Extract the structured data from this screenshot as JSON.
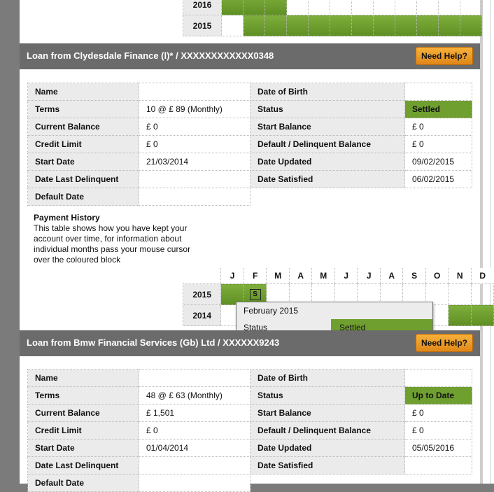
{
  "top_history": {
    "rows": [
      {
        "year": "2016",
        "cells": [
          "g",
          "g",
          "g",
          "",
          "",
          "",
          "",
          "",
          "",
          "",
          "",
          ""
        ]
      },
      {
        "year": "2015",
        "cells": [
          "",
          "g",
          "g",
          "g",
          "g",
          "g",
          "g",
          "g",
          "g",
          "g",
          "g",
          "g"
        ]
      }
    ]
  },
  "loan1": {
    "title": "Loan from Clydesdale Finance (l)* / XXXXXXXXXXXX0348",
    "help_label": "Need Help?",
    "rows": [
      {
        "l": "Name",
        "v": "",
        "l2": "Date of Birth",
        "v2": ""
      },
      {
        "l": "Terms",
        "v": "10  @  £ 89 (Monthly)",
        "l2": "Status",
        "v2": "Settled"
      },
      {
        "l": "Current Balance",
        "v": "£ 0",
        "l2": "Start Balance",
        "v2": "£ 0"
      },
      {
        "l": "Credit Limit",
        "v": "£ 0",
        "l2": "Default / Delinquent Balance",
        "v2": "£ 0"
      },
      {
        "l": "Start Date",
        "v": "21/03/2014",
        "l2": "Date Updated",
        "v2": "09/02/2015"
      },
      {
        "l": "Date Last Delinquent",
        "v": "",
        "l2": "Date Satisfied",
        "v2": "06/02/2015"
      },
      {
        "l": "Default Date",
        "v": ""
      }
    ],
    "payment_history": {
      "heading": "Payment History",
      "description": "This table shows how you have kept your account over time, for information about individual months pass your mouse cursor over the coloured block",
      "months": [
        "J",
        "F",
        "M",
        "A",
        "M",
        "J",
        "J",
        "A",
        "S",
        "O",
        "N",
        "D"
      ],
      "rows": [
        {
          "year": "2015",
          "cells": [
            "g",
            "s",
            "",
            "",
            "",
            "",
            "",
            "",
            "",
            "",
            "",
            ""
          ],
          "marker": "S"
        },
        {
          "year": "2014",
          "cells": [
            "",
            "",
            "",
            "",
            "",
            "",
            "",
            "",
            "",
            "",
            "g",
            "g"
          ]
        }
      ]
    },
    "tooltip": {
      "month": "February 2015",
      "status_label": "Status",
      "status_value": "Settled"
    }
  },
  "loan2": {
    "title": "Loan from Bmw Financial Services (Gb) Ltd / XXXXXX9243",
    "help_label": "Need Help?",
    "rows": [
      {
        "l": "Name",
        "v": "",
        "l2": "Date of Birth",
        "v2": ""
      },
      {
        "l": "Terms",
        "v": "48  @  £ 63 (Monthly)",
        "l2": "Status",
        "v2": "Up to Date"
      },
      {
        "l": "Current Balance",
        "v": "£ 1,501",
        "l2": "Start Balance",
        "v2": "£ 0"
      },
      {
        "l": "Credit Limit",
        "v": "£ 0",
        "l2": "Default / Delinquent Balance",
        "v2": "£ 0"
      },
      {
        "l": "Start Date",
        "v": "01/04/2014",
        "l2": "Date Updated",
        "v2": "05/05/2016"
      },
      {
        "l": "Date Last Delinquent",
        "v": "",
        "l2": "Date Satisfied",
        "v2": ""
      },
      {
        "l": "Default Date",
        "v": ""
      }
    ]
  },
  "colors": {
    "status_green": "#6f9f2f",
    "help_orange": "#f0a030",
    "header_gray": "#6b6b6b"
  }
}
